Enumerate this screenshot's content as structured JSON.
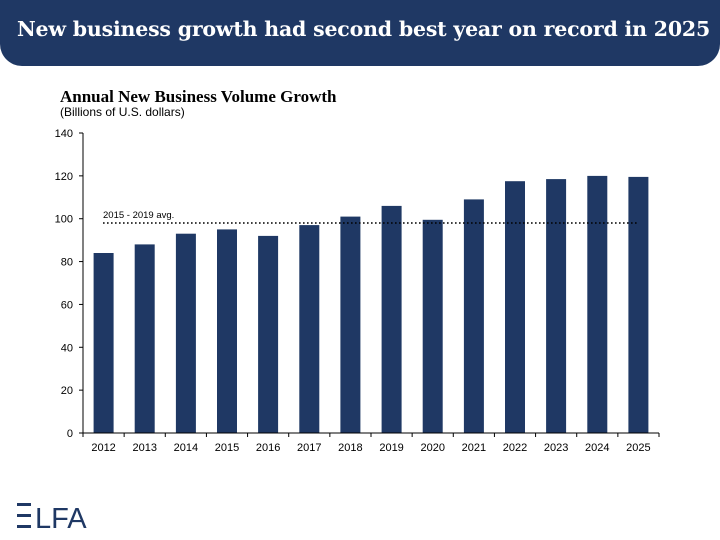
{
  "banner": {
    "title": "New business growth had second best year on record in 2025"
  },
  "colors": {
    "banner": "#1f3864",
    "bar": "#1f3864",
    "logo": "#1f3864"
  },
  "logo": {
    "text": "ELFA"
  },
  "chart_data": {
    "type": "bar",
    "title": "Annual New Business Volume Growth",
    "subtitle": "(Billions of U.S. dollars)",
    "xlabel": "",
    "ylabel": "",
    "categories": [
      "2012",
      "2013",
      "2014",
      "2015",
      "2016",
      "2017",
      "2018",
      "2019",
      "2020",
      "2021",
      "2022",
      "2023",
      "2024",
      "2025"
    ],
    "values": [
      84,
      88,
      93,
      95,
      92,
      97,
      101,
      106,
      99.5,
      109,
      117.5,
      118.5,
      120,
      119.5
    ],
    "ylim": [
      0,
      140
    ],
    "yticks": [
      0,
      20,
      40,
      60,
      80,
      100,
      120,
      140
    ],
    "grid": false,
    "reference_line": {
      "label": "2015 - 2019 avg.",
      "value": 98,
      "style": "dotted"
    }
  }
}
